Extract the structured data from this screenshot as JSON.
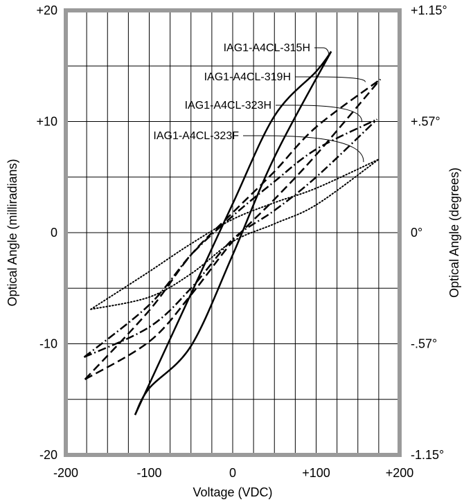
{
  "chart_data": {
    "type": "line",
    "title": "",
    "xlabel": "Voltage  (VDC)",
    "ylabel": "Optical Angle  (milliradians)",
    "y2label": "Optical Angle  (degrees)",
    "xlim": [
      -200,
      200
    ],
    "ylim": [
      -20,
      20
    ],
    "grid": true,
    "x_ticks": [
      {
        "value": -200,
        "label": "-200"
      },
      {
        "value": -100,
        "label": "-100"
      },
      {
        "value": 0,
        "label": "0"
      },
      {
        "value": 100,
        "label": "+100"
      },
      {
        "value": 200,
        "label": "+200"
      }
    ],
    "y_ticks": [
      {
        "value": 20,
        "label": "+20"
      },
      {
        "value": 10,
        "label": "+10"
      },
      {
        "value": 0,
        "label": "0"
      },
      {
        "value": -10,
        "label": "-10"
      },
      {
        "value": -20,
        "label": "-20"
      }
    ],
    "y2_ticks": [
      {
        "value": 20,
        "label": "+1.15°"
      },
      {
        "value": 10,
        "label": "+.57°"
      },
      {
        "value": 0,
        "label": "0°"
      },
      {
        "value": -10,
        "label": "-.57°"
      },
      {
        "value": -20,
        "label": "-1.15°"
      }
    ],
    "series": [
      {
        "name": "IAG1-A4CL-315H",
        "style": "solid",
        "upper": {
          "x": [
            -117,
            -50,
            0,
            50,
            100,
            118
          ],
          "y": [
            -16.4,
            -5.5,
            2.6,
            10.5,
            14.5,
            16.3
          ]
        },
        "lower": {
          "x": [
            -117,
            -100,
            -50,
            0,
            50,
            118
          ],
          "y": [
            -16.4,
            -14.0,
            -10.2,
            -2.0,
            6.8,
            16.3
          ]
        }
      },
      {
        "name": "IAG1-A4CL-319H",
        "style": "dashed",
        "upper": {
          "x": [
            -177,
            -100,
            -50,
            0,
            50,
            100,
            177
          ],
          "y": [
            -13.2,
            -7.0,
            -2.0,
            1.8,
            5.5,
            9.5,
            13.8
          ]
        },
        "lower": {
          "x": [
            -177,
            -100,
            -50,
            0,
            50,
            100,
            177
          ],
          "y": [
            -13.2,
            -9.8,
            -5.6,
            -0.8,
            3.0,
            7.0,
            13.8
          ]
        }
      },
      {
        "name": "IAG1-A4CL-323H",
        "style": "dash-dot",
        "upper": {
          "x": [
            -178,
            -100,
            -50,
            0,
            50,
            100,
            173
          ],
          "y": [
            -11.2,
            -6.5,
            -2.0,
            1.5,
            4.6,
            7.5,
            10.2
          ]
        },
        "lower": {
          "x": [
            -178,
            -100,
            -50,
            0,
            50,
            100,
            173
          ],
          "y": [
            -11.2,
            -8.5,
            -5.0,
            -0.6,
            2.0,
            5.0,
            10.2
          ]
        }
      },
      {
        "name": "IAG1-A4CL-323F",
        "style": "dotted",
        "upper": {
          "x": [
            -170,
            -100,
            -50,
            0,
            50,
            100,
            175
          ],
          "y": [
            -6.9,
            -3.5,
            -1.0,
            1.2,
            2.7,
            4.0,
            6.6
          ]
        },
        "lower": {
          "x": [
            -170,
            -100,
            -50,
            0,
            50,
            100,
            175
          ],
          "y": [
            -6.9,
            -5.8,
            -3.7,
            -0.8,
            0.8,
            2.5,
            6.6
          ]
        }
      }
    ]
  }
}
